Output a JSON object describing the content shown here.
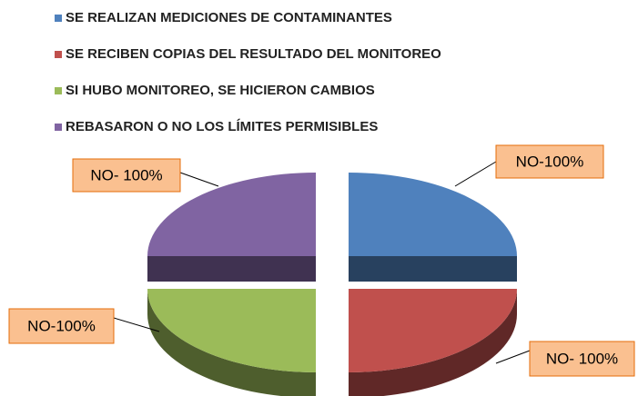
{
  "chart_data": {
    "type": "pie",
    "categories": [
      "SE REALIZAN MEDICIONES DE CONTAMINANTES",
      "SE RECIBEN COPIAS DEL RESULTADO DEL MONITOREO",
      "SI HUBO MONITOREO, SE HICIERON CAMBIOS",
      "REBASARON O NO LOS LÍMITES PERMISIBLES"
    ],
    "values": [
      100,
      100,
      100,
      100
    ],
    "value_labels": [
      "NO-100%",
      "NO- 100%",
      "NO-100%",
      "NO- 100%"
    ],
    "colors": [
      "#4f81bd",
      "#c0504d",
      "#9bbb59",
      "#8064a2"
    ],
    "legend": "top"
  }
}
